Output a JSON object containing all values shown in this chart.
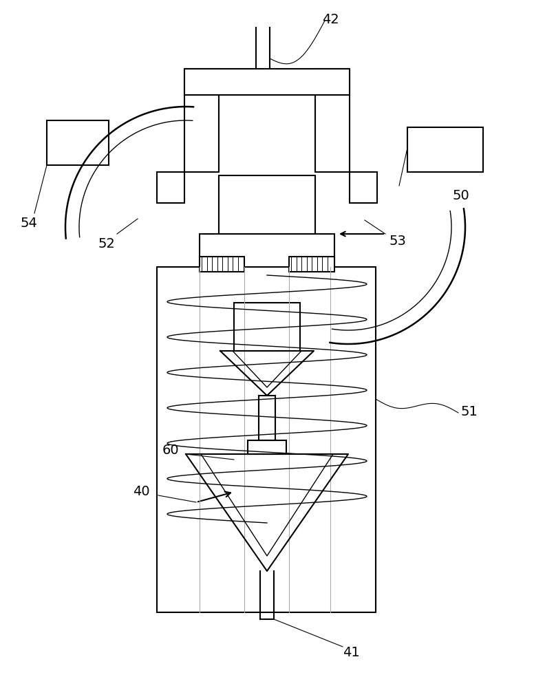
{
  "bg_color": "#ffffff",
  "lc": "#000000",
  "gc": "#aaaaaa",
  "figsize": [
    7.76,
    10.0
  ],
  "dpi": 100
}
